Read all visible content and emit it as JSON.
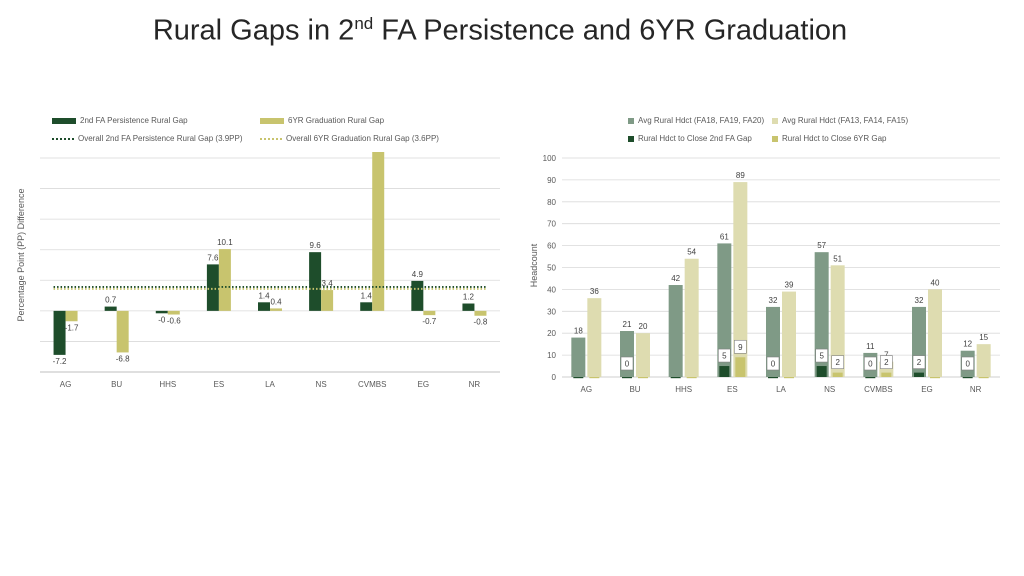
{
  "slide": {
    "title_main": "Rural Gaps in 2",
    "title_sup": "nd",
    "title_rest": " FA Persistence and 6YR Graduation"
  },
  "colors": {
    "dark_green": "#1e4d2b",
    "olive": "#c8c46e",
    "gray_green": "#7f9a86",
    "pale_olive": "#dedcb0",
    "grid": "#d9d9d9",
    "axis": "#bfbfbf"
  },
  "chart_data": [
    {
      "type": "bar",
      "ylabel": "Percentage Point (PP) Difference",
      "categories": [
        "AG",
        "BU",
        "HHS",
        "ES",
        "LA",
        "NS",
        "CVMBS",
        "EG",
        "NR"
      ],
      "series": [
        {
          "name": "2nd FA Persistence Rural Gap",
          "values": [
            -7.2,
            0.7,
            -0.4,
            7.6,
            1.4,
            9.6,
            1.4,
            4.9,
            1.2
          ],
          "labels": [
            "-7.2",
            "0.7",
            "-0",
            "7.6",
            "1.4",
            "9.6",
            "1.4",
            "4.9",
            "1.2"
          ]
        },
        {
          "name": "6YR Graduation Rural Gap",
          "values": [
            -1.7,
            -6.8,
            -0.6,
            10.1,
            0.4,
            3.4,
            26.0,
            -0.7,
            -0.8
          ],
          "labels": [
            "-1.7",
            "-6.8",
            "-0.6",
            "10.1",
            "0.4",
            "3.4",
            "26.0",
            "-0.7",
            "-0.8"
          ]
        }
      ],
      "reference_lines": [
        {
          "name": "Overall 2nd FA Persistence Rural Gap  (3.9PP)",
          "value": 3.9
        },
        {
          "name": "Overall 6YR Graduation Rural Gap (3.6PP)",
          "value": 3.6
        }
      ],
      "ylim": [
        -10,
        25
      ],
      "grid": true,
      "legend": "top"
    },
    {
      "type": "bar",
      "ylabel": "Headcount",
      "categories": [
        "AG",
        "BU",
        "HHS",
        "ES",
        "LA",
        "NS",
        "CVMBS",
        "EG",
        "NR"
      ],
      "series": [
        {
          "name": "Avg Rural Hdct (FA18, FA19, FA20)",
          "values": [
            18,
            21,
            42,
            61,
            32,
            57,
            11,
            32,
            12
          ]
        },
        {
          "name": "Avg Rural Hdct (FA13, FA14, FA15)",
          "values": [
            36,
            20,
            54,
            89,
            39,
            51,
            7,
            40,
            15
          ]
        },
        {
          "name": "Rural Hdct to Close 2nd FA Gap",
          "values": [
            0,
            0,
            0,
            5,
            0,
            5,
            0,
            2,
            0
          ]
        },
        {
          "name": "Rural Hdct to Close 6YR Gap",
          "values": [
            0,
            0,
            0,
            9,
            0,
            2,
            2,
            0,
            0
          ]
        }
      ],
      "ylim": [
        0,
        100
      ],
      "yticks": [
        0,
        10,
        20,
        30,
        40,
        50,
        60,
        70,
        80,
        90,
        100
      ],
      "grid": true,
      "legend": "top"
    }
  ]
}
